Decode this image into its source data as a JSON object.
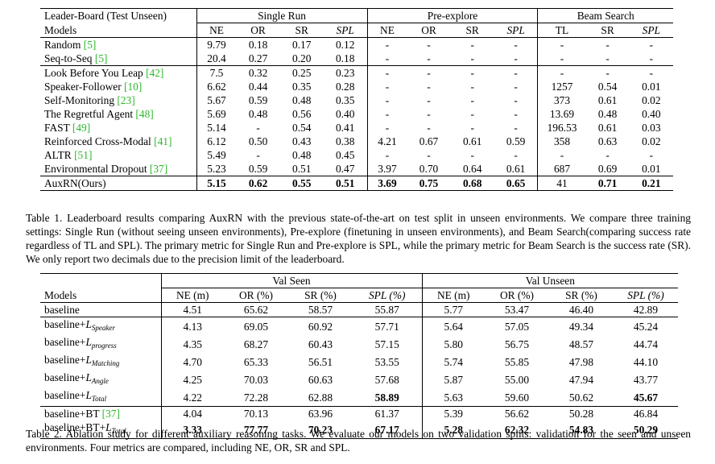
{
  "table1": {
    "corner": "Leader-Board (Test Unseen)",
    "groups": [
      "Single Run",
      "Pre-explore",
      "Beam Search"
    ],
    "models_label": "Models",
    "sub_single": [
      "NE",
      "OR",
      "SR",
      "SPL"
    ],
    "sub_pre": [
      "NE",
      "OR",
      "SR",
      "SPL"
    ],
    "sub_beam": [
      "TL",
      "SR",
      "SPL"
    ],
    "rows": [
      {
        "name": "Random ",
        "cite": "[5]",
        "vals": [
          "9.79",
          "0.18",
          "0.17",
          "0.12",
          "-",
          "-",
          "-",
          "-",
          "-",
          "-",
          "-"
        ]
      },
      {
        "name": "Seq-to-Seq ",
        "cite": "[5]",
        "vals": [
          "20.4",
          "0.27",
          "0.20",
          "0.18",
          "-",
          "-",
          "-",
          "-",
          "-",
          "-",
          "-"
        ]
      },
      {
        "name": "Look Before You Leap ",
        "cite": "[42]",
        "vals": [
          "7.5",
          "0.32",
          "0.25",
          "0.23",
          "-",
          "-",
          "-",
          "-",
          "-",
          "-",
          "-"
        ]
      },
      {
        "name": "Speaker-Follower ",
        "cite": "[10]",
        "vals": [
          "6.62",
          "0.44",
          "0.35",
          "0.28",
          "-",
          "-",
          "-",
          "-",
          "1257",
          "0.54",
          "0.01"
        ]
      },
      {
        "name": "Self-Monitoring ",
        "cite": "[23]",
        "vals": [
          "5.67",
          "0.59",
          "0.48",
          "0.35",
          "-",
          "-",
          "-",
          "-",
          "373",
          "0.61",
          "0.02"
        ]
      },
      {
        "name": "The Regretful Agent ",
        "cite": "[48]",
        "vals": [
          "5.69",
          "0.48",
          "0.56",
          "0.40",
          "-",
          "-",
          "-",
          "-",
          "13.69",
          "0.48",
          "0.40"
        ]
      },
      {
        "name": "FAST ",
        "cite": "[49]",
        "vals": [
          "5.14",
          "-",
          "0.54",
          "0.41",
          "-",
          "-",
          "-",
          "-",
          "196.53",
          "0.61",
          "0.03"
        ]
      },
      {
        "name": "Reinforced Cross-Modal ",
        "cite": "[41]",
        "vals": [
          "6.12",
          "0.50",
          "0.43",
          "0.38",
          "4.21",
          "0.67",
          "0.61",
          "0.59",
          "358",
          "0.63",
          "0.02"
        ]
      },
      {
        "name": "ALTR ",
        "cite": "[51]",
        "vals": [
          "5.49",
          "-",
          "0.48",
          "0.45",
          "-",
          "-",
          "-",
          "-",
          "-",
          "-",
          "-"
        ]
      },
      {
        "name": "Environmental Dropout ",
        "cite": "[37]",
        "vals": [
          "5.23",
          "0.59",
          "0.51",
          "0.47",
          "3.97",
          "0.70",
          "0.64",
          "0.61",
          "687",
          "0.69",
          "0.01"
        ]
      },
      {
        "name": "AuxRN(Ours)",
        "cite": "",
        "vals": [
          "5.15",
          "0.62",
          "0.55",
          "0.51",
          "3.69",
          "0.75",
          "0.68",
          "0.65",
          "41",
          "0.71",
          "0.21"
        ]
      }
    ]
  },
  "caption1": "Table 1.  Leaderboard results comparing AuxRN with the previous state-of-the-art on test split in unseen environments. We compare three training settings: Single Run (without seeing unseen environments), Pre-explore (finetuning in unseen environments), and Beam Search(comparing success rate regardless of TL and SPL). The primary metric for Single Run and Pre-explore is SPL, while the primary metric for Beam Search is the success rate (SR). We only report two decimals due to the precision limit of the leaderboard.",
  "table2": {
    "groups": [
      "Val Seen",
      "Val Unseen"
    ],
    "models_label": "Models",
    "sub": [
      "NE (m)",
      "OR (%)",
      "SR (%)",
      "SPL (%)"
    ],
    "rows": [
      {
        "base": "baseline",
        "loss": "",
        "cite": "",
        "vals": [
          "4.51",
          "65.62",
          "58.57",
          "55.87",
          "5.77",
          "53.47",
          "46.40",
          "42.89"
        ]
      },
      {
        "base": "baseline+",
        "loss": "Speaker",
        "cite": "",
        "vals": [
          "4.13",
          "69.05",
          "60.92",
          "57.71",
          "5.64",
          "57.05",
          "49.34",
          "45.24"
        ]
      },
      {
        "base": "baseline+",
        "loss": "progress",
        "cite": "",
        "vals": [
          "4.35",
          "68.27",
          "60.43",
          "57.15",
          "5.80",
          "56.75",
          "48.57",
          "44.74"
        ]
      },
      {
        "base": "baseline+",
        "loss": "Matching",
        "cite": "",
        "vals": [
          "4.70",
          "65.33",
          "56.51",
          "53.55",
          "5.74",
          "55.85",
          "47.98",
          "44.10"
        ]
      },
      {
        "base": "baseline+",
        "loss": "Angle",
        "cite": "",
        "vals": [
          "4.25",
          "70.03",
          "60.63",
          "57.68",
          "5.87",
          "55.00",
          "47.94",
          "43.77"
        ]
      },
      {
        "base": "baseline+",
        "loss": "Total",
        "cite": "",
        "vals": [
          "4.22",
          "72.28",
          "62.88",
          "58.89",
          "5.63",
          "59.60",
          "50.62",
          "45.67"
        ]
      },
      {
        "base": "baseline+BT ",
        "loss": "",
        "cite": "[37]",
        "vals": [
          "4.04",
          "70.13",
          "63.96",
          "61.37",
          "5.39",
          "56.62",
          "50.28",
          "46.84"
        ]
      },
      {
        "base": "baseline+BT+",
        "loss": "Total",
        "cite": "",
        "vals": [
          "3.33",
          "77.77",
          "70.23",
          "67.17",
          "5.28",
          "62.32",
          "54.83",
          "50.29"
        ]
      }
    ]
  },
  "caption2": "Table 2.  Ablation study for different auxiliary reasoning tasks. We evaluate our models on two validation splits: validation for the seen and unseen environments. Four metrics are compared, including NE, OR, SR and SPL."
}
